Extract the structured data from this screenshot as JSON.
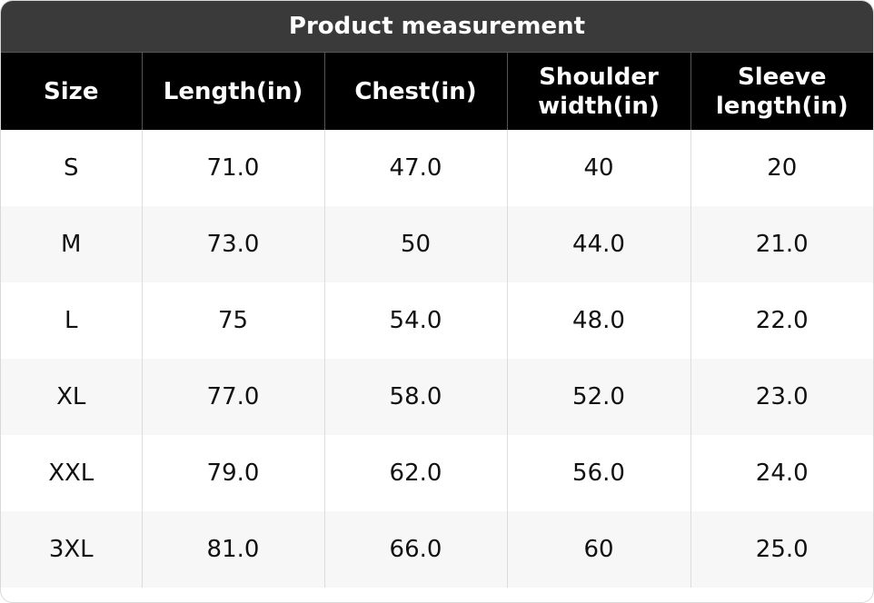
{
  "table": {
    "title": "Product measurement",
    "header": [
      "Size",
      "Length(in)",
      "Chest(in)",
      "Shoulder width(in)",
      "Sleeve length(in)"
    ],
    "rows": [
      [
        "S",
        "71.0",
        "47.0",
        "40",
        "20"
      ],
      [
        "M",
        "73.0",
        "50",
        "44.0",
        "21.0"
      ],
      [
        "L",
        "75",
        "54.0",
        "48.0",
        "22.0"
      ],
      [
        "XL",
        "77.0",
        "58.0",
        "52.0",
        "23.0"
      ],
      [
        "XXL",
        "79.0",
        "62.0",
        "56.0",
        "24.0"
      ],
      [
        "3XL",
        "81.0",
        "66.0",
        "60",
        "25.0"
      ]
    ]
  }
}
